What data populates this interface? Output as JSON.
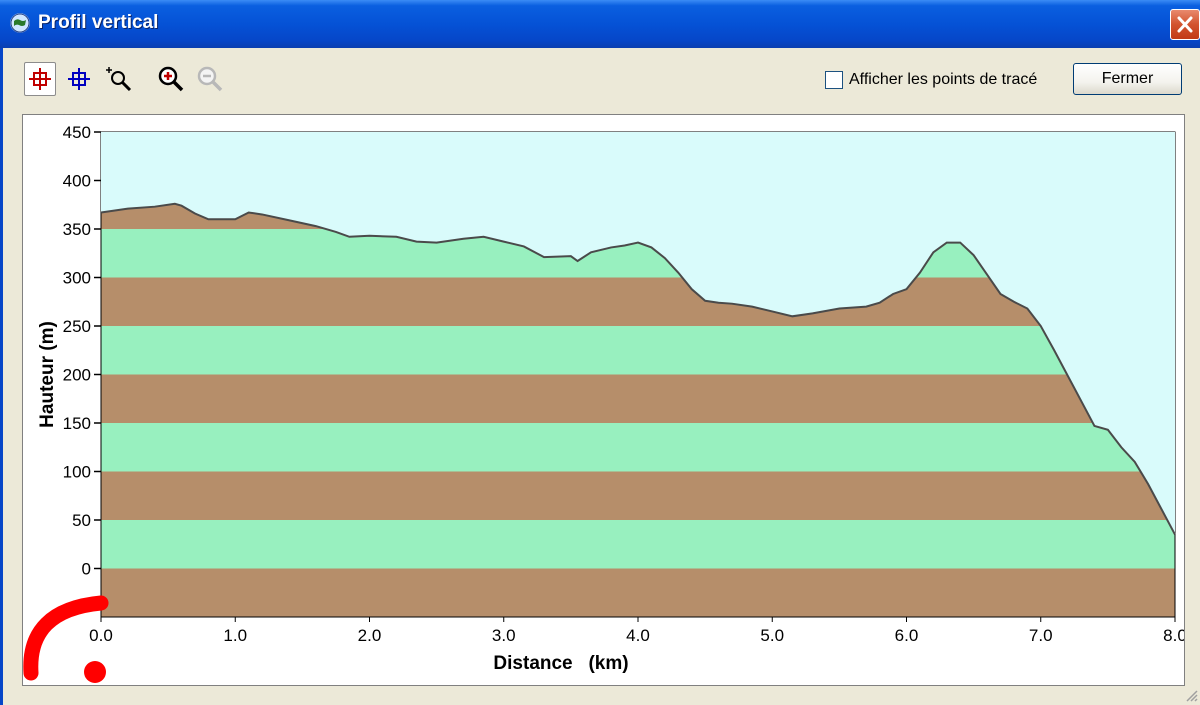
{
  "window": {
    "title": "Profil vertical"
  },
  "toolbar": {
    "buttons": [
      {
        "icon": "select-crosshair-red-icon",
        "pressed": true
      },
      {
        "icon": "select-crosshair-blue-icon",
        "pressed": false
      },
      {
        "icon": "zoom-area-icon",
        "pressed": false
      },
      {
        "icon": "zoom-in-icon",
        "pressed": false
      },
      {
        "icon": "zoom-out-icon",
        "disabled": true
      }
    ],
    "show_points_label": "Afficher les points de tracé",
    "show_points_checked": false,
    "close_label": "Fermer"
  },
  "colors": {
    "sky": "#d9fbfb",
    "band_brown": "#b68e6a",
    "band_green": "#98f0bf",
    "profile_line": "#4a4a4a"
  },
  "chart_data": {
    "type": "area",
    "title": "",
    "xlabel": "Distance   (km)",
    "ylabel": "Hauteur (m)",
    "xlim": [
      0,
      8
    ],
    "ylim": [
      -50,
      450
    ],
    "x_ticks": [
      "0.0",
      "1.0",
      "2.0",
      "3.0",
      "4.0",
      "5.0",
      "6.0",
      "7.0",
      "8.0"
    ],
    "y_ticks": [
      "450",
      "400",
      "350",
      "300",
      "250",
      "200",
      "150",
      "100",
      "50",
      "0"
    ],
    "band_height_m": 50,
    "grid": false,
    "series": [
      {
        "x": [
          0.0,
          0.2,
          0.4,
          0.55,
          0.6,
          0.7,
          0.8,
          1.0,
          1.1,
          1.2,
          1.4,
          1.6,
          1.75,
          1.85,
          2.0,
          2.2,
          2.35,
          2.5,
          2.7,
          2.85,
          3.0,
          3.15,
          3.3,
          3.5,
          3.55,
          3.65,
          3.8,
          3.9,
          4.0,
          4.1,
          4.2,
          4.3,
          4.4,
          4.5,
          4.6,
          4.7,
          4.85,
          5.0,
          5.15,
          5.3,
          5.5,
          5.7,
          5.8,
          5.9,
          6.0,
          6.1,
          6.2,
          6.3,
          6.4,
          6.5,
          6.6,
          6.7,
          6.8,
          6.9,
          7.0,
          7.1,
          7.2,
          7.3,
          7.4,
          7.5,
          7.6,
          7.7,
          7.8,
          7.9,
          8.0
        ],
        "y": [
          367,
          371,
          373,
          376,
          374,
          366,
          360,
          360,
          367,
          365,
          359,
          353,
          347,
          342,
          343,
          342,
          337,
          336,
          340,
          342,
          337,
          332,
          321,
          322,
          317,
          326,
          331,
          333,
          336,
          331,
          320,
          305,
          288,
          276,
          274,
          273,
          270,
          265,
          260,
          263,
          268,
          270,
          274,
          283,
          288,
          305,
          326,
          336,
          336,
          323,
          303,
          283,
          275,
          268,
          250,
          225,
          199,
          173,
          147,
          143,
          125,
          110,
          87,
          61,
          35
        ]
      }
    ],
    "annotations": []
  }
}
